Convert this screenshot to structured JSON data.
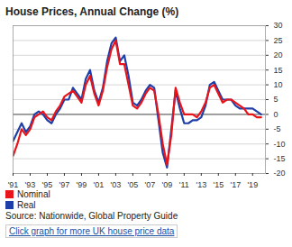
{
  "chart_data": {
    "type": "line",
    "title": "House Prices, Annual Change (%)",
    "x": [
      1991,
      1991.5,
      1992,
      1992.5,
      1993,
      1993.5,
      1994,
      1994.5,
      1995,
      1995.5,
      1996,
      1996.5,
      1997,
      1997.5,
      1998,
      1998.5,
      1999,
      1999.5,
      2000,
      2000.5,
      2001,
      2001.5,
      2002,
      2002.5,
      2003,
      2003.5,
      2004,
      2004.5,
      2005,
      2005.5,
      2006,
      2006.5,
      2007,
      2007.5,
      2008,
      2008.5,
      2009,
      2009.5,
      2010,
      2010.5,
      2011,
      2011.5,
      2012,
      2012.5,
      2013,
      2013.5,
      2014,
      2014.5,
      2015,
      2015.5,
      2016,
      2016.5,
      2017,
      2017.5,
      2018,
      2018.5,
      2019,
      2019.5,
      2020
    ],
    "series": [
      {
        "name": "Real",
        "color": "#1f3fa8",
        "values": [
          -9,
          -6,
          -3,
          -6,
          -4,
          0,
          1,
          0,
          -2,
          -3,
          0,
          2,
          5,
          5,
          9,
          7,
          5,
          12,
          15,
          8,
          4,
          9,
          18,
          24,
          26,
          18,
          20,
          13,
          4,
          3,
          5,
          8,
          10,
          9,
          -2,
          -13,
          -18,
          -5,
          8,
          2,
          -3,
          -3,
          -2,
          -2,
          -1,
          3,
          10,
          11,
          8,
          5,
          5,
          5,
          3,
          2,
          2,
          2,
          2,
          1,
          0
        ]
      },
      {
        "name": "Nominal",
        "color": "#e8141a",
        "values": [
          -14,
          -10,
          -5,
          -7,
          -5,
          -1,
          0,
          1,
          -1,
          -2,
          1,
          3,
          6,
          7,
          8,
          6,
          4,
          10,
          13,
          7,
          3,
          8,
          16,
          22,
          25,
          17,
          17,
          10,
          3,
          2,
          4,
          7,
          9,
          8,
          0,
          -10,
          -17,
          -7,
          9,
          4,
          0,
          0,
          0,
          -1,
          1,
          4,
          9,
          10,
          7,
          4,
          5,
          5,
          4,
          3,
          2,
          0,
          0,
          -1,
          -1
        ]
      }
    ],
    "xlim": [
      1991,
      2020.5
    ],
    "xticks": [
      {
        "value": 1991,
        "label": "'91"
      },
      {
        "value": 1993,
        "label": "'93"
      },
      {
        "value": 1995,
        "label": "'95"
      },
      {
        "value": 1997,
        "label": "'97"
      },
      {
        "value": 1999,
        "label": "'99"
      },
      {
        "value": 2001,
        "label": "'01"
      },
      {
        "value": 2003,
        "label": "'03"
      },
      {
        "value": 2005,
        "label": "'05"
      },
      {
        "value": 2007,
        "label": "'07"
      },
      {
        "value": 2009,
        "label": "'09"
      },
      {
        "value": 2011,
        "label": "'11"
      },
      {
        "value": 2013,
        "label": "'13"
      },
      {
        "value": 2015,
        "label": "'15"
      },
      {
        "value": 2017,
        "label": "'17"
      },
      {
        "value": 2019,
        "label": "'19"
      }
    ],
    "ylim": [
      -20,
      30
    ],
    "yticks": [
      -20,
      -15,
      -10,
      -5,
      0,
      5,
      10,
      15,
      20,
      25,
      30
    ],
    "grid": true,
    "legend": "bottom",
    "source": "Source: Nationwide, Global Property Guide",
    "link": "Click graph for more UK house price data"
  }
}
